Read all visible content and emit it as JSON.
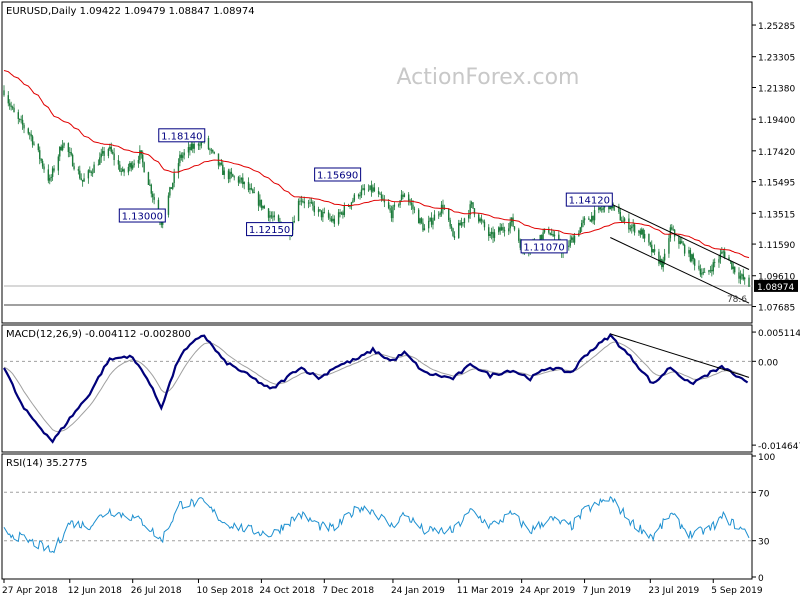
{
  "watermark": "ActionForex.com",
  "colors": {
    "candle": "#1b7a3a",
    "ema": "#e00000",
    "macd_line": "#00007a",
    "macd_signal": "#a0a0a0",
    "rsi": "#1e90d0",
    "annotation": "#000080",
    "frame": "#000000",
    "background": "#ffffff"
  },
  "chart_data": [
    {
      "type": "candlestick",
      "title": "EURUSD,Daily  1.09422 1.09479 1.08847 1.08974",
      "ylim": [
        1.0678,
        1.266
      ],
      "y_ticks": [
        "1.25285",
        "1.23305",
        "1.21380",
        "1.19400",
        "1.17420",
        "1.15495",
        "1.13515",
        "1.11590",
        "1.09610",
        "1.07685"
      ],
      "current_price": "1.08974",
      "fib_label": "78.6",
      "overlay_series": [
        {
          "type": "line",
          "shape": "moving-average"
        }
      ],
      "annotations": [
        {
          "label": "1.18140",
          "date": "2018-09-13",
          "value": 1.1814
        },
        {
          "label": "1.13000",
          "date": "2018-08-15",
          "value": 1.13
        },
        {
          "label": "1.15690",
          "date": "2018-12-31",
          "value": 1.1569
        },
        {
          "label": "1.12150",
          "date": "2018-11-12",
          "value": 1.1215
        },
        {
          "label": "1.14120",
          "date": "2019-06-25",
          "value": 1.1412
        },
        {
          "label": "1.11070",
          "date": "2019-05-23",
          "value": 1.1107
        }
      ],
      "price_path": [
        [
          "2018-04-27",
          1.212
        ],
        [
          "2018-05-05",
          1.195
        ],
        [
          "2018-05-15",
          1.185
        ],
        [
          "2018-05-29",
          1.155
        ],
        [
          "2018-06-07",
          1.18
        ],
        [
          "2018-06-21",
          1.155
        ],
        [
          "2018-07-09",
          1.176
        ],
        [
          "2018-07-19",
          1.16
        ],
        [
          "2018-07-31",
          1.172
        ],
        [
          "2018-08-15",
          1.13
        ],
        [
          "2018-08-28",
          1.17
        ],
        [
          "2018-09-13",
          1.1814
        ],
        [
          "2018-09-28",
          1.16
        ],
        [
          "2018-10-10",
          1.155
        ],
        [
          "2018-10-31",
          1.133
        ],
        [
          "2018-11-12",
          1.1215
        ],
        [
          "2018-11-20",
          1.145
        ],
        [
          "2018-12-04",
          1.135
        ],
        [
          "2018-12-14",
          1.13
        ],
        [
          "2018-12-31",
          1.148
        ],
        [
          "2019-01-10",
          1.15
        ],
        [
          "2019-01-23",
          1.135
        ],
        [
          "2019-02-01",
          1.148
        ],
        [
          "2019-02-15",
          1.125
        ],
        [
          "2019-02-28",
          1.14
        ],
        [
          "2019-03-07",
          1.12
        ],
        [
          "2019-03-20",
          1.14
        ],
        [
          "2019-04-02",
          1.12
        ],
        [
          "2019-04-17",
          1.13
        ],
        [
          "2019-04-25",
          1.112
        ],
        [
          "2019-05-13",
          1.125
        ],
        [
          "2019-05-23",
          1.1107
        ],
        [
          "2019-06-07",
          1.13
        ],
        [
          "2019-06-25",
          1.1412
        ],
        [
          "2019-07-04",
          1.13
        ],
        [
          "2019-07-17",
          1.123
        ],
        [
          "2019-07-25",
          1.11
        ],
        [
          "2019-08-01",
          1.103
        ],
        [
          "2019-08-06",
          1.125
        ],
        [
          "2019-08-20",
          1.108
        ],
        [
          "2019-08-30",
          1.096
        ],
        [
          "2019-09-12",
          1.111
        ],
        [
          "2019-09-20",
          1.1
        ],
        [
          "2019-09-30",
          1.0897
        ]
      ],
      "trend_lines": [
        {
          "from": [
            "2019-06-25",
            1.1412
          ],
          "to": [
            "2019-09-30",
            1.1
          ]
        },
        {
          "from": [
            "2019-06-25",
            1.12
          ],
          "to": [
            "2019-09-30",
            1.079
          ]
        }
      ],
      "horizontal_lines": [
        1.0897,
        1.0778
      ]
    },
    {
      "type": "line",
      "title": "MACD(12,26,9) -0.004112 -0.002800",
      "ylim": [
        -0.0155,
        0.006
      ],
      "y_ticks": [
        "0.005114",
        "0.00",
        "-0.014647"
      ],
      "macd": [
        [
          "2018-04-27",
          -0.001
        ],
        [
          "2018-05-10",
          -0.008
        ],
        [
          "2018-05-24",
          -0.012
        ],
        [
          "2018-05-31",
          -0.014
        ],
        [
          "2018-06-12",
          -0.01
        ],
        [
          "2018-06-25",
          -0.006
        ],
        [
          "2018-07-09",
          0.0002
        ],
        [
          "2018-07-24",
          0.001
        ],
        [
          "2018-08-03",
          -0.002
        ],
        [
          "2018-08-15",
          -0.008
        ],
        [
          "2018-08-28",
          0.001
        ],
        [
          "2018-09-13",
          0.0048
        ],
        [
          "2018-09-28",
          0.0
        ],
        [
          "2018-10-12",
          -0.002
        ],
        [
          "2018-10-31",
          -0.005
        ],
        [
          "2018-11-20",
          -0.001
        ],
        [
          "2018-12-04",
          -0.003
        ],
        [
          "2018-12-14",
          -0.001
        ],
        [
          "2018-12-31",
          0.0005
        ],
        [
          "2019-01-10",
          0.002
        ],
        [
          "2019-01-23",
          0.0
        ],
        [
          "2019-02-01",
          0.0015
        ],
        [
          "2019-02-15",
          -0.002
        ],
        [
          "2019-03-07",
          -0.003
        ],
        [
          "2019-03-20",
          -0.0005
        ],
        [
          "2019-04-02",
          -0.0025
        ],
        [
          "2019-04-17",
          -0.0015
        ],
        [
          "2019-04-30",
          -0.003
        ],
        [
          "2019-05-13",
          -0.001
        ],
        [
          "2019-05-29",
          -0.002
        ],
        [
          "2019-06-07",
          0.001
        ],
        [
          "2019-06-25",
          0.0045
        ],
        [
          "2019-07-10",
          0.0005
        ],
        [
          "2019-07-25",
          -0.004
        ],
        [
          "2019-08-06",
          -0.001
        ],
        [
          "2019-08-20",
          -0.004
        ],
        [
          "2019-09-03",
          -0.002
        ],
        [
          "2019-09-12",
          -0.001
        ],
        [
          "2019-09-30",
          -0.0041
        ]
      ],
      "trend_line": {
        "from": [
          "2019-06-25",
          0.0048
        ],
        "to": [
          "2019-09-30",
          -0.0028
        ]
      }
    },
    {
      "type": "line",
      "title": "RSI(14) 35.2775",
      "ylim": [
        0,
        100
      ],
      "y_ticks": [
        "100",
        "70",
        "30",
        "0"
      ],
      "levels": [
        70,
        30
      ],
      "rsi": [
        [
          "2018-04-27",
          38
        ],
        [
          "2018-05-10",
          32
        ],
        [
          "2018-05-24",
          25
        ],
        [
          "2018-05-31",
          20
        ],
        [
          "2018-06-12",
          45
        ],
        [
          "2018-06-25",
          42
        ],
        [
          "2018-07-09",
          55
        ],
        [
          "2018-07-24",
          50
        ],
        [
          "2018-08-03",
          45
        ],
        [
          "2018-08-15",
          30
        ],
        [
          "2018-08-28",
          60
        ],
        [
          "2018-09-13",
          62
        ],
        [
          "2018-09-28",
          45
        ],
        [
          "2018-10-12",
          40
        ],
        [
          "2018-10-31",
          35
        ],
        [
          "2018-11-20",
          52
        ],
        [
          "2018-12-04",
          42
        ],
        [
          "2018-12-14",
          40
        ],
        [
          "2018-12-31",
          58
        ],
        [
          "2019-01-10",
          55
        ],
        [
          "2019-01-23",
          42
        ],
        [
          "2019-02-01",
          52
        ],
        [
          "2019-02-15",
          38
        ],
        [
          "2019-03-07",
          38
        ],
        [
          "2019-03-20",
          55
        ],
        [
          "2019-04-02",
          42
        ],
        [
          "2019-04-17",
          52
        ],
        [
          "2019-04-30",
          38
        ],
        [
          "2019-05-13",
          48
        ],
        [
          "2019-05-29",
          42
        ],
        [
          "2019-06-07",
          55
        ],
        [
          "2019-06-25",
          65
        ],
        [
          "2019-07-10",
          45
        ],
        [
          "2019-07-25",
          33
        ],
        [
          "2019-08-06",
          52
        ],
        [
          "2019-08-20",
          35
        ],
        [
          "2019-09-03",
          40
        ],
        [
          "2019-09-12",
          50
        ],
        [
          "2019-09-30",
          35
        ]
      ]
    }
  ],
  "x_axis": {
    "labels": [
      {
        "text": "27 Apr 2018",
        "date": "2018-04-27"
      },
      {
        "text": "12 Jun 2018",
        "date": "2018-06-12"
      },
      {
        "text": "26 Jul 2018",
        "date": "2018-07-26"
      },
      {
        "text": "10 Sep 2018",
        "date": "2018-09-10"
      },
      {
        "text": "24 Oct 2018",
        "date": "2018-10-24"
      },
      {
        "text": "7 Dec 2018",
        "date": "2018-12-07"
      },
      {
        "text": "24 Jan 2019",
        "date": "2019-01-24"
      },
      {
        "text": "11 Mar 2019",
        "date": "2019-03-11"
      },
      {
        "text": "24 Apr 2019",
        "date": "2019-04-24"
      },
      {
        "text": "7 Jun 2019",
        "date": "2019-06-07"
      },
      {
        "text": "23 Jul 2019",
        "date": "2019-07-23"
      },
      {
        "text": "5 Sep 2019",
        "date": "2019-09-05"
      }
    ],
    "range": [
      "2018-04-27",
      "2019-09-30"
    ]
  }
}
